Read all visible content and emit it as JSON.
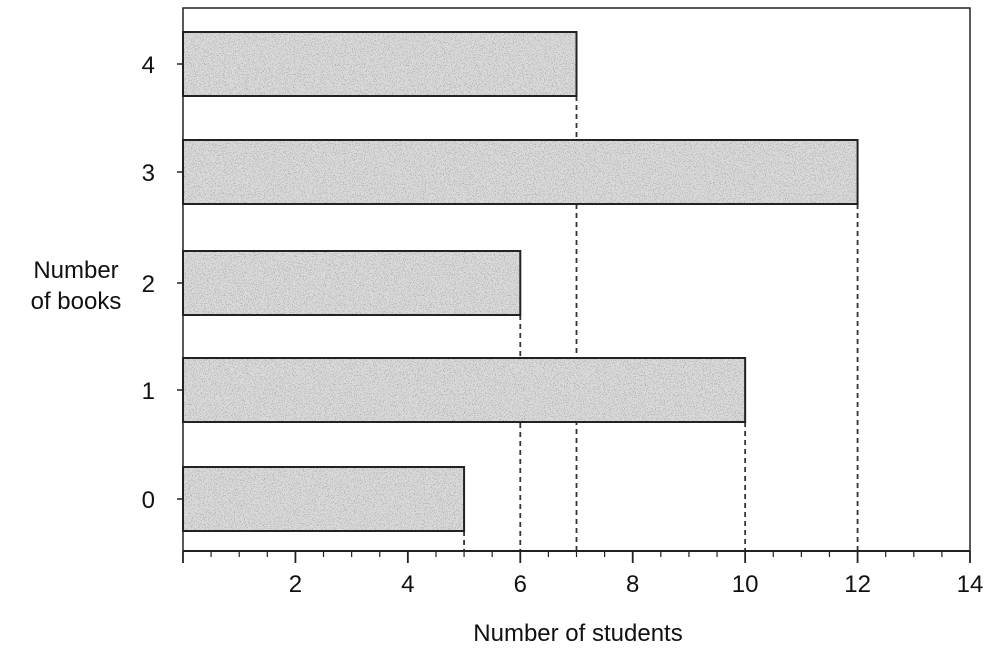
{
  "chart_data": {
    "type": "bar",
    "orientation": "horizontal",
    "title": "",
    "xlabel": "Number of students",
    "ylabel_lines": [
      "Number",
      "of books"
    ],
    "categories": [
      "0",
      "1",
      "2",
      "3",
      "4"
    ],
    "values": [
      5,
      10,
      6,
      12,
      7
    ],
    "xlim": [
      0,
      14
    ],
    "xticks": [
      2,
      4,
      6,
      8,
      10,
      12,
      14
    ],
    "x_minor_step": 0.5,
    "grid": false,
    "reference_lines": "dashed vertical lines from each bar end down to the x-axis",
    "bar_fill": "stippled gray",
    "colors": {
      "bar_fill_base": "#d9d9d9",
      "bar_fill_dark": "#b5b5b5",
      "bar_outline": "#222222",
      "axis": "#222222",
      "dashed_line": "#333333"
    }
  }
}
